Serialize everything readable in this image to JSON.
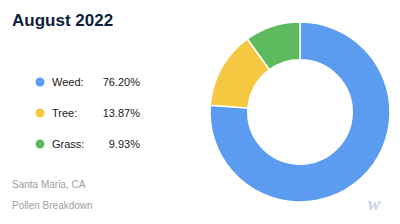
{
  "chart_data": {
    "type": "pie",
    "title": "August 2022",
    "subtitle": [
      "Santa Maria, CA",
      "Pollen Breakdown"
    ],
    "annotations": [
      "w"
    ],
    "categories": [
      "Weed:",
      "Tree:",
      "Grass:"
    ],
    "values": [
      76.2,
      13.87,
      9.93
    ],
    "value_labels": [
      "76.20%",
      "13.87%",
      "9.93%"
    ],
    "colors": [
      "#5B9BF0",
      "#F5C842",
      "#5DBB5D"
    ],
    "legend": "left"
  }
}
